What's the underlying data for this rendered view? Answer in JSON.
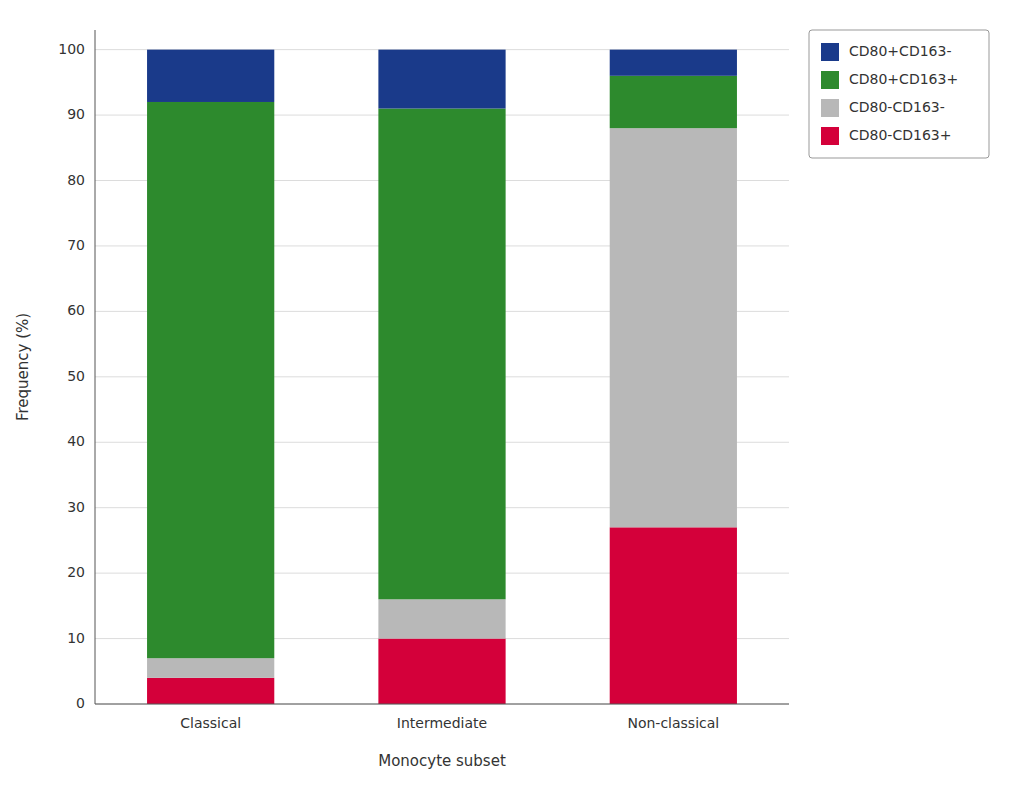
{
  "chart_data": {
    "type": "bar",
    "stacked": true,
    "xlabel": "Monocyte subset",
    "ylabel": "Frequency (%)",
    "categories": [
      "Classical",
      "Intermediate",
      "Non-classical"
    ],
    "series": [
      {
        "name": "CD80-CD163+",
        "color": "#d4003a",
        "values": [
          4.0,
          10.0,
          27.0
        ]
      },
      {
        "name": "CD80-CD163-",
        "color": "#b8b8b8",
        "values": [
          3.0,
          6.0,
          61.0
        ]
      },
      {
        "name": "CD80+CD163+",
        "color": "#2d8a2d",
        "values": [
          85.0,
          75.0,
          8.0
        ]
      },
      {
        "name": "CD80+CD163-",
        "color": "#1a3a8a",
        "values": [
          8.0,
          9.0,
          4.0
        ]
      }
    ],
    "ylim": [
      0,
      103
    ],
    "yticks": [
      0,
      10,
      20,
      30,
      40,
      50,
      60,
      70,
      80,
      90,
      100
    ],
    "grid": true,
    "legend": "right"
  }
}
